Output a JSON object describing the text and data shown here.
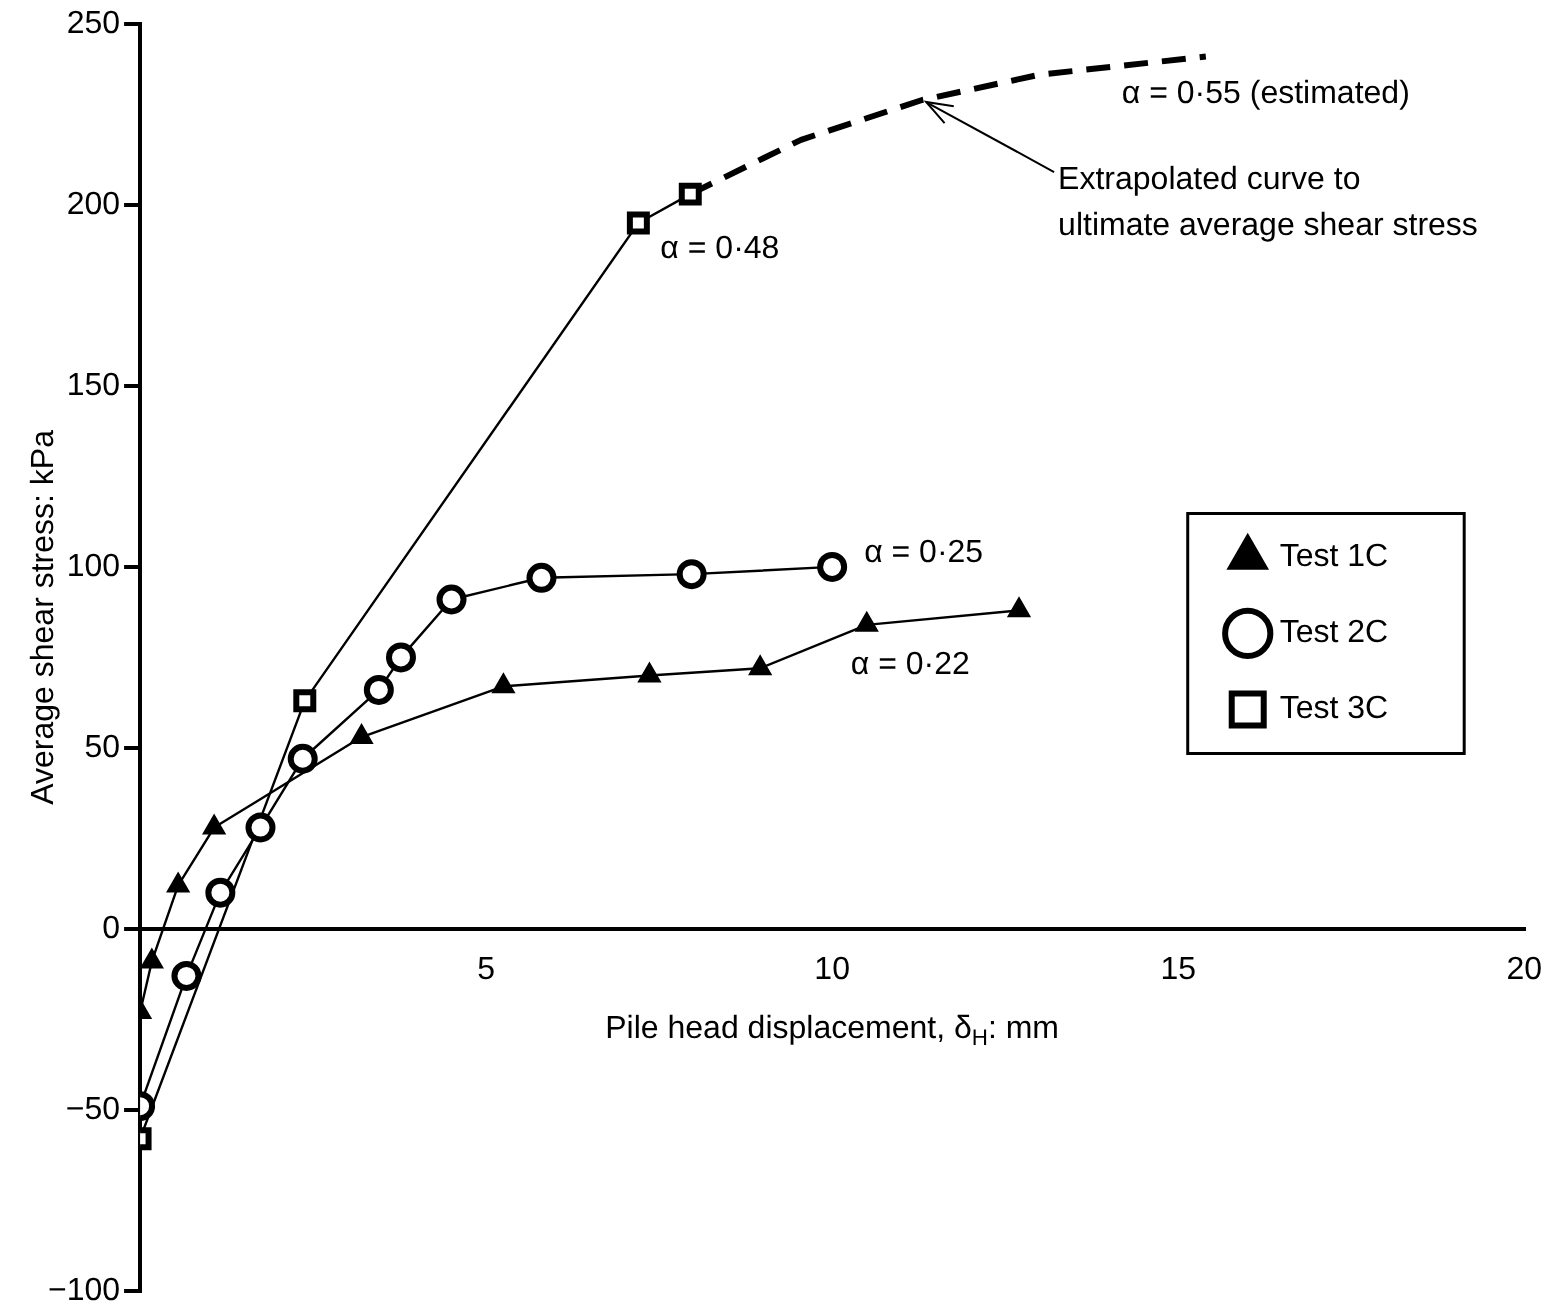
{
  "chart_data": {
    "type": "line",
    "xlabel": "Pile head displacement, δ$_{H}$: mm",
    "ylabel": "Average shear stress: kPa",
    "xlim": [
      0,
      20
    ],
    "xticks": [
      {
        "value": 0,
        "label": null
      },
      5,
      10,
      15,
      20
    ],
    "ylim": [
      -100,
      250
    ],
    "yticks": [
      {
        "value": -100,
        "label": "−100"
      },
      {
        "value": -50,
        "label": "−50"
      },
      0,
      50,
      100,
      150,
      200,
      250
    ],
    "grid": false,
    "legend": "right",
    "series": [
      {
        "name": "Test 1C",
        "color": "#000000",
        "marker": "triangle",
        "x": [
          0,
          0.17,
          0.55,
          1.07,
          3.2,
          5.25,
          7.36,
          8.96,
          10.5,
          12.7
        ],
        "values": [
          -23,
          -9,
          12,
          28,
          53,
          67,
          70,
          72,
          84,
          88
        ]
      },
      {
        "name": "Test 2C",
        "color": "#000000",
        "marker": "circle",
        "x": [
          0,
          0.67,
          1.16,
          1.74,
          2.35,
          3.45,
          3.77,
          4.5,
          5.8,
          7.97,
          10.0
        ],
        "values": [
          -49,
          -13,
          10,
          28,
          47,
          66,
          75,
          91,
          97,
          98,
          100
        ]
      },
      {
        "name": "Test 3C",
        "color": "#000000",
        "marker": "square",
        "x": [
          0,
          2.38,
          7.2,
          7.95
        ],
        "values": [
          -58,
          63,
          195,
          203
        ]
      },
      {
        "color": "#000000",
        "marker": "none",
        "line_style": "dashed",
        "x": [
          7.95,
          9.55,
          11.3,
          13.0,
          15.4
        ],
        "values": [
          203,
          218,
          229,
          236,
          241
        ]
      }
    ],
    "annotations": [
      {
        "text": "α = 0·48",
        "x": 7.2,
        "y": 195
      },
      {
        "text": "α = 0·55 (estimated)",
        "x": 15.4,
        "y": 241
      },
      {
        "text": "α = 0·25",
        "x": 10.0,
        "y": 100
      },
      {
        "text": "α = 0·22",
        "x": 10.5,
        "y": 84
      },
      {
        "text": "Extrapolated curve to ultimate average shear stress",
        "x": 11.3,
        "y": 229
      }
    ]
  }
}
